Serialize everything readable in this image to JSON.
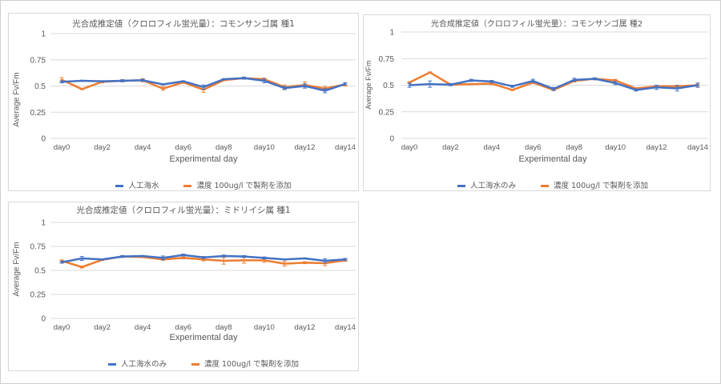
{
  "chart_data": [
    {
      "type": "line",
      "title": "光合成推定値（クロロフィル蛍光量）：コモンサンゴ属 種1",
      "xlabel": "Experimental day",
      "ylabel": "Average Fv/Fm",
      "ylim": [
        0,
        1
      ],
      "yticks": [
        "0",
        "0.25",
        "0.5",
        "0.75",
        "1"
      ],
      "xticks": [
        "day0",
        "day2",
        "day4",
        "day6",
        "day8",
        "day10",
        "day12",
        "day14"
      ],
      "x": [
        0,
        1,
        2,
        3,
        4,
        5,
        6,
        7,
        8,
        9,
        10,
        11,
        12,
        13,
        14
      ],
      "grid": true,
      "legend_position": "bottom",
      "series": [
        {
          "name": "人工海水",
          "color": "#4472C4",
          "values": [
            0.54,
            0.55,
            0.545,
            0.55,
            0.555,
            0.515,
            0.545,
            0.49,
            0.565,
            0.575,
            0.55,
            0.48,
            0.5,
            0.455,
            0.52
          ],
          "errors": [
            0.01,
            0.005,
            0.005,
            0.01,
            0.01,
            0.005,
            0.005,
            0.02,
            0.005,
            0.01,
            0.02,
            0.015,
            0.02,
            0.02,
            0.01
          ]
        },
        {
          "name": "濃度 100ug/l で製剤を添加",
          "color": "#ED7D31",
          "values": [
            0.56,
            0.47,
            0.54,
            0.55,
            0.555,
            0.475,
            0.535,
            0.465,
            0.555,
            0.575,
            0.565,
            0.49,
            0.51,
            0.475,
            0.515
          ],
          "errors": [
            0.02,
            0.005,
            0.01,
            0.01,
            0.015,
            0.015,
            0.01,
            0.025,
            0.005,
            0.01,
            0.01,
            0.02,
            0.03,
            0.02,
            0.015
          ]
        }
      ]
    },
    {
      "type": "line",
      "title": "光合成推定値（クロロフィル蛍光量）：コモンサンゴ属 種2",
      "xlabel": "Experimental day",
      "ylabel": "Average Fv/Fm",
      "ylim": [
        0,
        1
      ],
      "yticks": [
        "0",
        "0.25",
        "0.5",
        "0.75",
        "1"
      ],
      "xticks": [
        "day0",
        "day2",
        "day4",
        "day6",
        "day8",
        "day10",
        "day12",
        "day14"
      ],
      "x": [
        0,
        1,
        2,
        3,
        4,
        5,
        6,
        7,
        8,
        9,
        10,
        11,
        12,
        13,
        14
      ],
      "grid": true,
      "legend_position": "bottom",
      "series": [
        {
          "name": "人工海水のみ",
          "color": "#4472C4",
          "values": [
            0.5,
            0.51,
            0.505,
            0.545,
            0.535,
            0.49,
            0.54,
            0.465,
            0.55,
            0.56,
            0.52,
            0.455,
            0.48,
            0.47,
            0.5
          ],
          "errors": [
            0.02,
            0.03,
            0.01,
            0.01,
            0.01,
            0.01,
            0.015,
            0.015,
            0.015,
            0.01,
            0.015,
            0.01,
            0.02,
            0.025,
            0.02
          ]
        },
        {
          "name": "濃度 100ug/l で製剤を添加",
          "color": "#ED7D31",
          "values": [
            0.525,
            0.62,
            0.505,
            0.51,
            0.515,
            0.455,
            0.525,
            0.455,
            0.54,
            0.56,
            0.545,
            0.47,
            0.49,
            0.49,
            0.5
          ],
          "errors": [
            0.01,
            0.005,
            0.005,
            0.005,
            0.01,
            0.005,
            0.01,
            0.005,
            0.01,
            0.005,
            0.01,
            0.005,
            0.01,
            0.01,
            0.01
          ]
        }
      ]
    },
    {
      "type": "line",
      "title": "光合成推定値（クロロフィル蛍光量）：ミドリイシ属 種1",
      "xlabel": "Experimental day",
      "ylabel": "Average Fv/Fm",
      "ylim": [
        0,
        1
      ],
      "yticks": [
        "0",
        "0.25",
        "0.5",
        "0.75",
        "1"
      ],
      "xticks": [
        "day0",
        "day2",
        "day4",
        "day6",
        "day8",
        "day10",
        "day12",
        "day14"
      ],
      "x": [
        0,
        1,
        2,
        3,
        4,
        5,
        6,
        7,
        8,
        9,
        10,
        11,
        12,
        13,
        14
      ],
      "grid": true,
      "legend_position": "bottom",
      "series": [
        {
          "name": "人工海水のみ",
          "color": "#4472C4",
          "values": [
            0.585,
            0.625,
            0.615,
            0.645,
            0.65,
            0.63,
            0.66,
            0.635,
            0.65,
            0.645,
            0.63,
            0.615,
            0.625,
            0.6,
            0.615
          ],
          "errors": [
            0.01,
            0.02,
            0.005,
            0.01,
            0.005,
            0.02,
            0.01,
            0.01,
            0.01,
            0.01,
            0.01,
            0.005,
            0.005,
            0.02,
            0.01
          ]
        },
        {
          "name": "濃度 100ug/l で製剤を添加",
          "color": "#ED7D31",
          "values": [
            0.6,
            0.535,
            0.61,
            0.645,
            0.64,
            0.615,
            0.63,
            0.615,
            0.6,
            0.605,
            0.605,
            0.57,
            0.58,
            0.575,
            0.605
          ],
          "errors": [
            0.01,
            0.01,
            0.005,
            0.01,
            0.005,
            0.01,
            0.01,
            0.015,
            0.035,
            0.03,
            0.02,
            0.025,
            0.01,
            0.025,
            0.01
          ]
        }
      ]
    }
  ]
}
